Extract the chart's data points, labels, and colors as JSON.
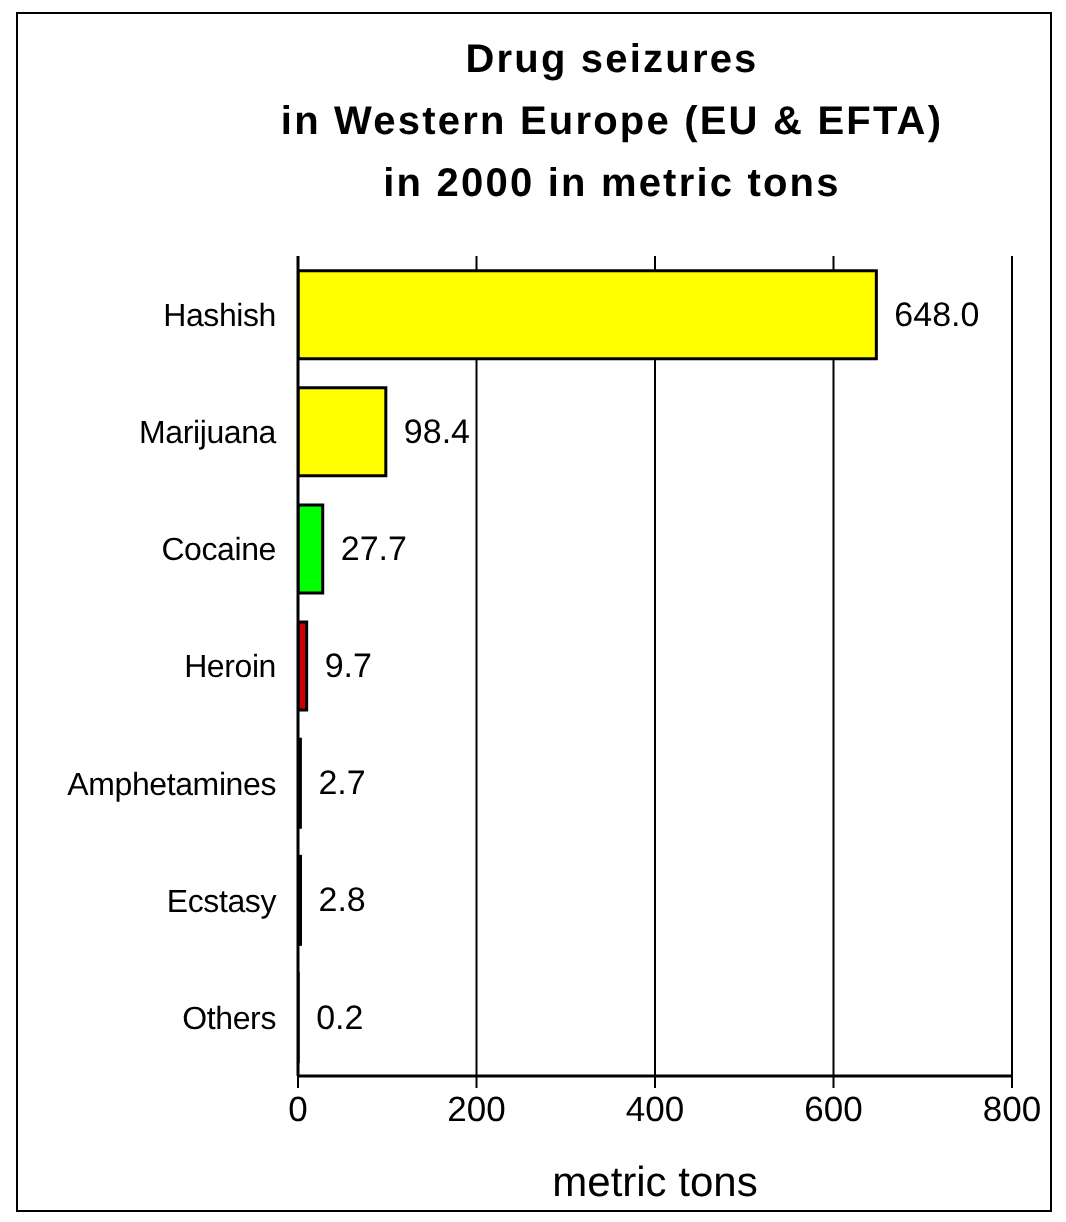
{
  "chart_data": {
    "type": "bar",
    "orientation": "horizontal",
    "title": "Drug seizures\nin Western Europe (EU & EFTA)\nin 2000 in metric tons",
    "xlabel": "metric tons",
    "categories": [
      "Hashish",
      "Marijuana",
      "Cocaine",
      "Heroin",
      "Amphetamines",
      "Ecstasy",
      "Others"
    ],
    "values": [
      648.0,
      98.4,
      27.7,
      9.7,
      2.7,
      2.8,
      0.2
    ],
    "value_labels": [
      "648.0",
      "98.4",
      "27.7",
      "9.7",
      "2.7",
      "2.8",
      "0.2"
    ],
    "colors": [
      "#ffff00",
      "#ffff00",
      "#00ff00",
      "#cc0000",
      "#000000",
      "#000000",
      "#000000"
    ],
    "xlim": [
      0,
      800
    ],
    "xticks": [
      0,
      200,
      400,
      600,
      800
    ],
    "grid": "x"
  }
}
